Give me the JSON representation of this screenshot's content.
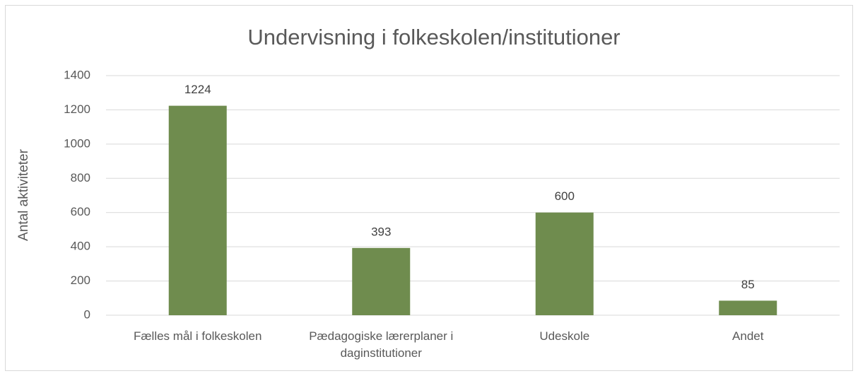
{
  "chart_data": {
    "type": "bar",
    "title": "Undervisning i folkeskolen/institutioner",
    "y_label": "Antal aktiviteter",
    "categories": [
      "Fælles mål i folkeskolen",
      "Pædagogiske lærerplaner i daginstitutioner",
      "Udeskole",
      "Andet"
    ],
    "values": [
      1224,
      393,
      600,
      85
    ],
    "color": "#6f8c4e",
    "ylim": [
      0,
      1400
    ],
    "yticks": [
      0,
      200,
      400,
      600,
      800,
      1000,
      1200,
      1400
    ],
    "grid": true,
    "data_labels": true
  }
}
